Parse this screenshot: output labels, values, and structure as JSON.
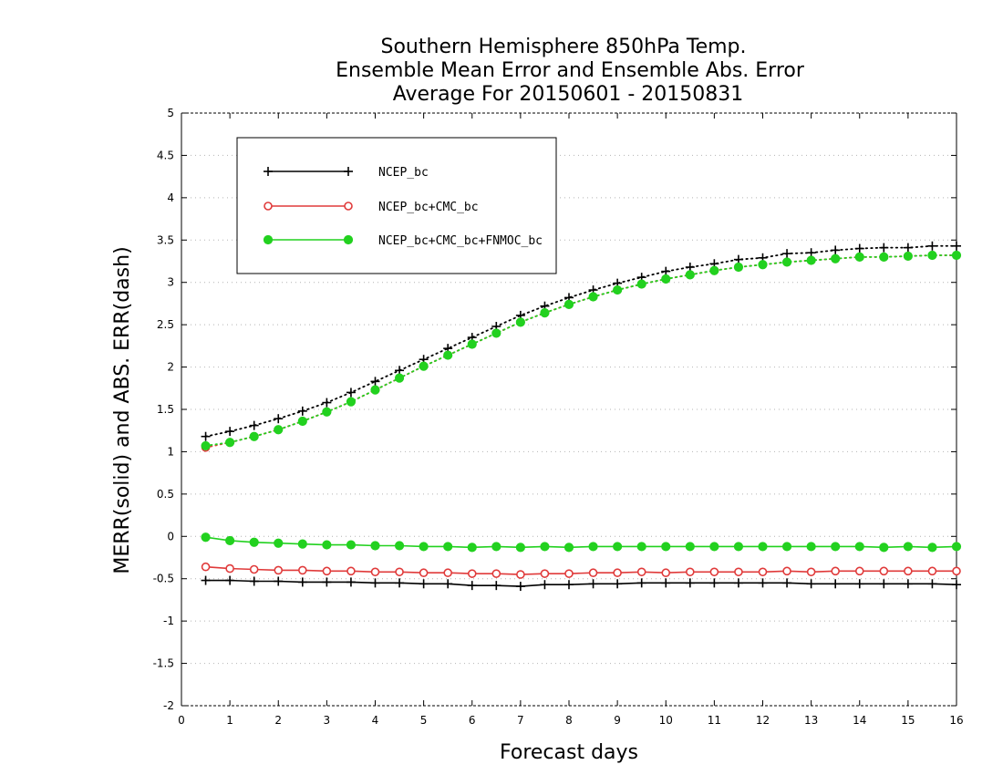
{
  "chart_data": {
    "type": "line",
    "title": [
      "Southern Hemisphere 850hPa Temp.",
      "Ensemble Mean Error and Ensemble Abs. Error",
      "Average For 20150601 - 20150831"
    ],
    "xlabel": "Forecast days",
    "ylabel": "MERR(solid) and ABS. ERR(dash)",
    "xlim": [
      0,
      16
    ],
    "ylim": [
      -2,
      5
    ],
    "x_ticks": [
      0,
      1,
      2,
      3,
      4,
      5,
      6,
      7,
      8,
      9,
      10,
      11,
      12,
      13,
      14,
      15,
      16
    ],
    "y_ticks": [
      -2,
      -1.5,
      -1,
      -0.5,
      0,
      0.5,
      1,
      1.5,
      2,
      2.5,
      3,
      3.5,
      4,
      4.5,
      5
    ],
    "grid": true,
    "legend": "top-left",
    "x": [
      0.5,
      1,
      1.5,
      2,
      2.5,
      3,
      3.5,
      4,
      4.5,
      5,
      5.5,
      6,
      6.5,
      7,
      7.5,
      8,
      8.5,
      9,
      9.5,
      10,
      10.5,
      11,
      11.5,
      12,
      12.5,
      13,
      13.5,
      14,
      14.5,
      15,
      15.5,
      16
    ],
    "series": [
      {
        "name": "NCEP_bc",
        "color": "#000000",
        "marker": "plus",
        "merr": [
          -0.52,
          -0.52,
          -0.53,
          -0.53,
          -0.54,
          -0.54,
          -0.54,
          -0.55,
          -0.55,
          -0.56,
          -0.56,
          -0.58,
          -0.58,
          -0.59,
          -0.57,
          -0.57,
          -0.56,
          -0.56,
          -0.55,
          -0.55,
          -0.55,
          -0.55,
          -0.55,
          -0.55,
          -0.55,
          -0.56,
          -0.56,
          -0.56,
          -0.56,
          -0.56,
          -0.56,
          -0.57
        ],
        "abs_err": [
          1.18,
          1.24,
          1.31,
          1.39,
          1.48,
          1.58,
          1.7,
          1.83,
          1.96,
          2.09,
          2.22,
          2.35,
          2.48,
          2.61,
          2.72,
          2.82,
          2.91,
          2.99,
          3.06,
          3.13,
          3.18,
          3.22,
          3.27,
          3.29,
          3.34,
          3.35,
          3.38,
          3.4,
          3.41,
          3.41,
          3.43,
          3.43
        ]
      },
      {
        "name": "NCEP_bc+CMC_bc",
        "color": "#e03a3a",
        "marker": "open-circle",
        "merr": [
          -0.36,
          -0.38,
          -0.39,
          -0.4,
          -0.4,
          -0.41,
          -0.41,
          -0.42,
          -0.42,
          -0.43,
          -0.43,
          -0.44,
          -0.44,
          -0.45,
          -0.44,
          -0.44,
          -0.43,
          -0.43,
          -0.42,
          -0.43,
          -0.42,
          -0.42,
          -0.42,
          -0.42,
          -0.41,
          -0.42,
          -0.41,
          -0.41,
          -0.41,
          -0.41,
          -0.41,
          -0.41
        ],
        "abs_err": [
          1.05,
          1.11,
          1.18,
          1.26,
          1.36,
          1.47,
          1.59,
          1.73,
          1.87,
          2.01,
          2.14,
          2.27,
          2.4,
          2.53,
          2.64,
          2.74,
          2.83,
          2.91,
          2.98,
          3.04,
          3.09,
          3.14,
          3.18,
          3.21,
          3.24,
          3.26,
          3.28,
          3.3,
          3.3,
          3.31,
          3.32,
          3.32
        ]
      },
      {
        "name": "NCEP_bc+CMC_bc+FNMOC_bc",
        "color": "#22d11f",
        "marker": "filled-circle",
        "merr": [
          -0.01,
          -0.05,
          -0.07,
          -0.08,
          -0.09,
          -0.1,
          -0.1,
          -0.11,
          -0.11,
          -0.12,
          -0.12,
          -0.13,
          -0.12,
          -0.13,
          -0.12,
          -0.13,
          -0.12,
          -0.12,
          -0.12,
          -0.12,
          -0.12,
          -0.12,
          -0.12,
          -0.12,
          -0.12,
          -0.12,
          -0.12,
          -0.12,
          -0.13,
          -0.12,
          -0.13,
          -0.12
        ],
        "abs_err": [
          1.07,
          1.11,
          1.18,
          1.26,
          1.36,
          1.47,
          1.59,
          1.73,
          1.87,
          2.01,
          2.14,
          2.27,
          2.4,
          2.53,
          2.64,
          2.74,
          2.83,
          2.91,
          2.98,
          3.04,
          3.09,
          3.14,
          3.18,
          3.21,
          3.24,
          3.26,
          3.28,
          3.3,
          3.3,
          3.31,
          3.32,
          3.32
        ]
      }
    ]
  }
}
